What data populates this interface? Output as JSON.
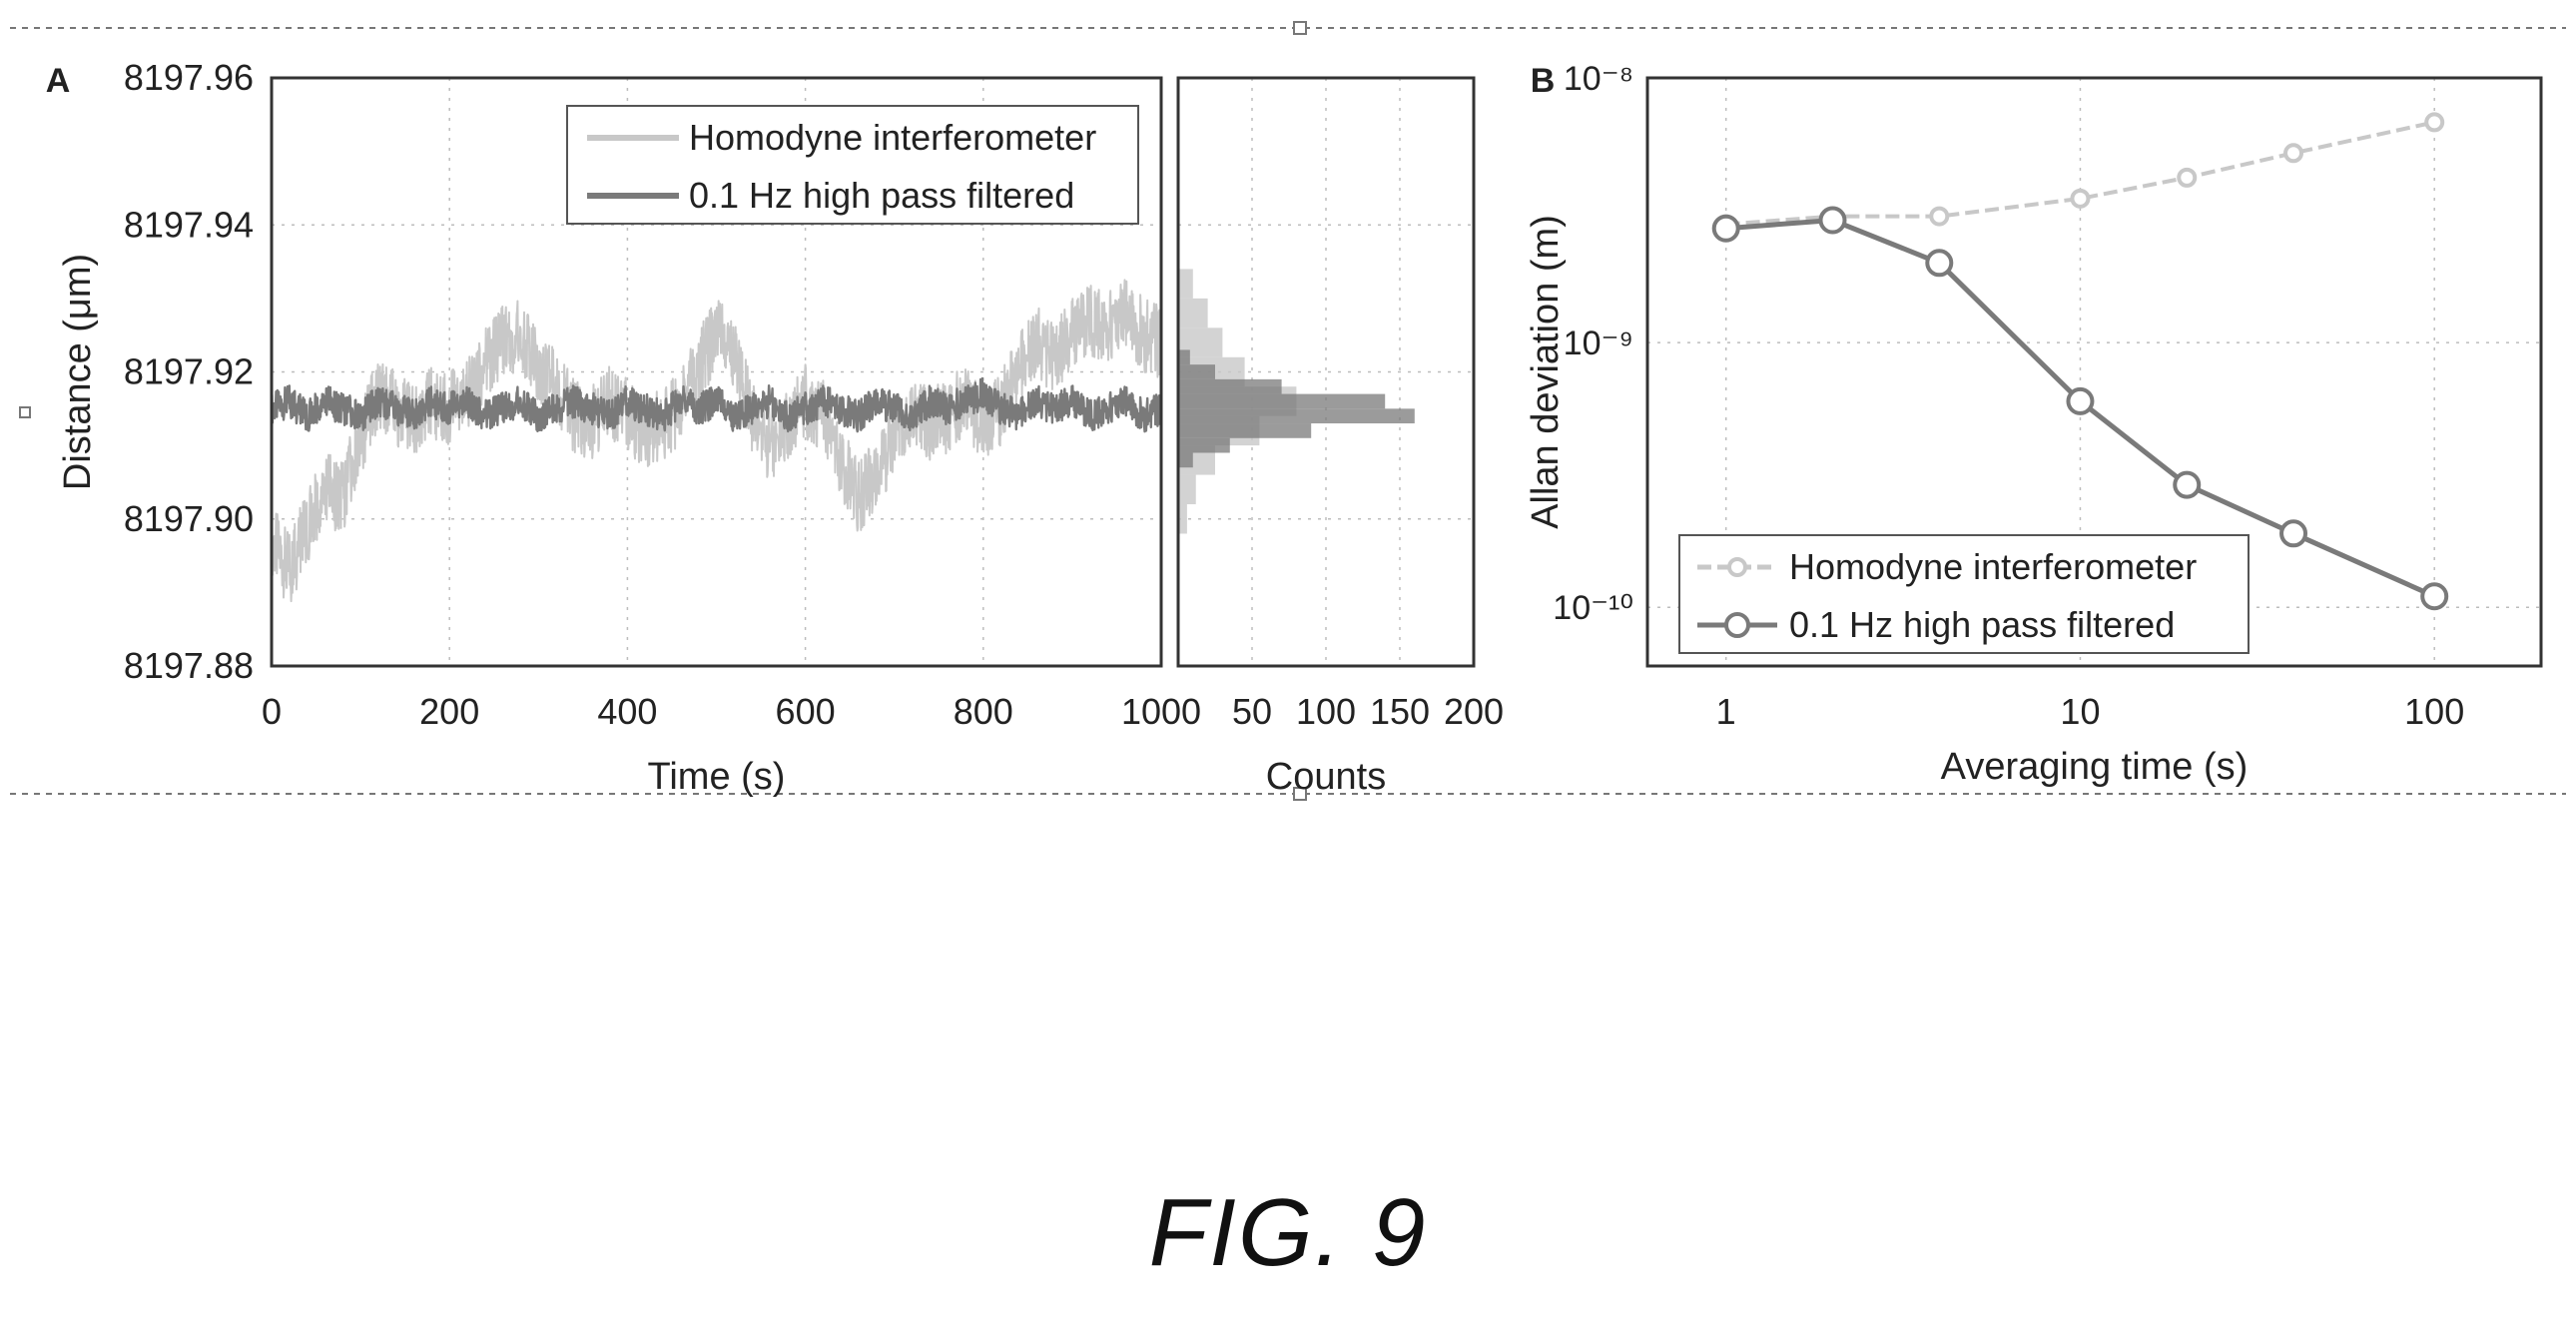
{
  "figure_caption": "FIG. 9",
  "colors": {
    "homodyne": "#c8c8c8",
    "filtered": "#7a7a7a",
    "axis": "#333333",
    "grid": "#bdbdbd"
  },
  "chart_data": [
    {
      "panel": "A",
      "type": "line",
      "xlabel": "Time (s)",
      "ylabel": "Distance (μm)",
      "xlim": [
        0,
        1000
      ],
      "ylim": [
        8197.88,
        8197.96
      ],
      "xticks": [
        "0",
        "200",
        "400",
        "600",
        "800",
        "1000"
      ],
      "yticks": [
        "8197.88",
        "8197.90",
        "8197.92",
        "8197.94",
        "8197.96"
      ],
      "legend_position": "top-right",
      "series": [
        {
          "name": "Homodyne interferometer",
          "x": [
            0,
            20,
            40,
            60,
            80,
            100,
            120,
            140,
            160,
            180,
            200,
            220,
            240,
            260,
            280,
            300,
            320,
            340,
            360,
            380,
            400,
            420,
            440,
            460,
            480,
            500,
            520,
            540,
            560,
            580,
            600,
            620,
            640,
            660,
            680,
            700,
            720,
            740,
            760,
            780,
            800,
            820,
            840,
            860,
            880,
            900,
            920,
            940,
            960,
            980,
            1000
          ],
          "y": [
            8197.897,
            8197.893,
            8197.899,
            8197.904,
            8197.903,
            8197.911,
            8197.917,
            8197.915,
            8197.913,
            8197.916,
            8197.915,
            8197.917,
            8197.921,
            8197.924,
            8197.925,
            8197.921,
            8197.918,
            8197.914,
            8197.913,
            8197.916,
            8197.914,
            8197.912,
            8197.913,
            8197.915,
            8197.921,
            8197.925,
            8197.923,
            8197.914,
            8197.91,
            8197.913,
            8197.916,
            8197.914,
            8197.908,
            8197.903,
            8197.906,
            8197.911,
            8197.915,
            8197.913,
            8197.914,
            8197.916,
            8197.913,
            8197.915,
            8197.92,
            8197.924,
            8197.922,
            8197.925,
            8197.927,
            8197.926,
            8197.928,
            8197.925,
            8197.924
          ]
        },
        {
          "name": "0.1 Hz high pass filtered",
          "x": [
            0,
            20,
            40,
            60,
            80,
            100,
            120,
            140,
            160,
            180,
            200,
            220,
            240,
            260,
            280,
            300,
            320,
            340,
            360,
            380,
            400,
            420,
            440,
            460,
            480,
            500,
            520,
            540,
            560,
            580,
            600,
            620,
            640,
            660,
            680,
            700,
            720,
            740,
            760,
            780,
            800,
            820,
            840,
            860,
            880,
            900,
            920,
            940,
            960,
            980,
            1000
          ],
          "y": [
            8197.915,
            8197.916,
            8197.914,
            8197.916,
            8197.915,
            8197.914,
            8197.916,
            8197.915,
            8197.914,
            8197.916,
            8197.915,
            8197.916,
            8197.914,
            8197.915,
            8197.916,
            8197.914,
            8197.915,
            8197.916,
            8197.915,
            8197.914,
            8197.916,
            8197.915,
            8197.914,
            8197.916,
            8197.915,
            8197.916,
            8197.914,
            8197.915,
            8197.916,
            8197.914,
            8197.915,
            8197.916,
            8197.915,
            8197.914,
            8197.916,
            8197.915,
            8197.914,
            8197.916,
            8197.915,
            8197.916,
            8197.917,
            8197.915,
            8197.914,
            8197.916,
            8197.915,
            8197.916,
            8197.914,
            8197.915,
            8197.916,
            8197.914,
            8197.915
          ]
        }
      ]
    },
    {
      "panel": "A-histogram",
      "type": "bar",
      "orientation": "horizontal",
      "xlabel": "Counts",
      "xlim": [
        0,
        200
      ],
      "xticks": [
        "50",
        "100",
        "150",
        "200"
      ],
      "ylim": [
        8197.88,
        8197.96
      ],
      "series": [
        {
          "name": "Homodyne interferometer",
          "bins": [
            8197.9,
            8197.904,
            8197.908,
            8197.912,
            8197.916,
            8197.92,
            8197.924,
            8197.928,
            8197.932
          ],
          "counts": [
            6,
            12,
            25,
            55,
            80,
            45,
            30,
            20,
            10
          ]
        },
        {
          "name": "0.1 Hz high pass filtered",
          "bins": [
            8197.908,
            8197.91,
            8197.912,
            8197.914,
            8197.916,
            8197.918,
            8197.92,
            8197.922
          ],
          "counts": [
            10,
            35,
            90,
            160,
            140,
            70,
            25,
            8
          ]
        }
      ]
    },
    {
      "panel": "B",
      "type": "line",
      "xscale": "log",
      "yscale": "log",
      "xlabel": "Averaging time (s)",
      "ylabel": "Allan deviation (m)",
      "xlim": [
        0.6,
        200
      ],
      "ylim": [
        6e-11,
        1e-08
      ],
      "xticks": [
        "1",
        "10",
        "100"
      ],
      "yticks": [
        "10⁻¹⁰",
        "10⁻⁹",
        "10⁻⁸"
      ],
      "legend_position": "bottom-left",
      "series": [
        {
          "name": "Homodyne interferometer",
          "x": [
            1,
            2,
            4,
            10,
            20,
            40,
            100
          ],
          "y": [
            2.8e-09,
            3e-09,
            3e-09,
            3.5e-09,
            4.2e-09,
            5.2e-09,
            6.8e-09
          ]
        },
        {
          "name": "0.1 Hz high pass filtered",
          "x": [
            1,
            2,
            4,
            10,
            20,
            40,
            100
          ],
          "y": [
            2.7e-09,
            2.9e-09,
            2e-09,
            6e-10,
            2.9e-10,
            1.9e-10,
            1.1e-10
          ]
        }
      ]
    }
  ]
}
